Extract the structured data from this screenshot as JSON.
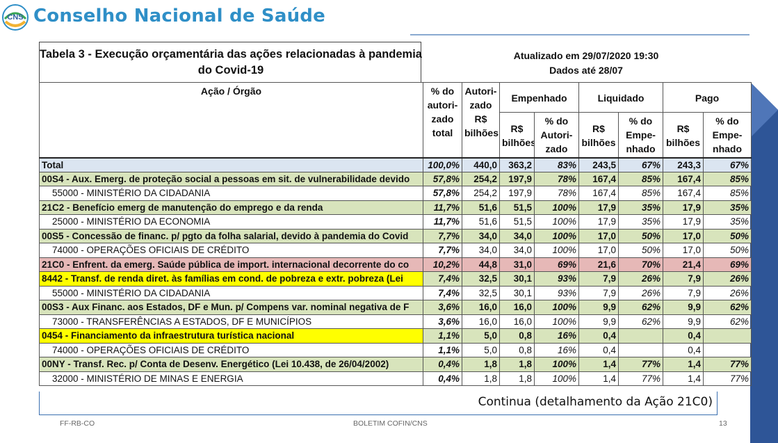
{
  "brand": {
    "name": "Conselho Nacional de Saúde",
    "logo_text": "CNS"
  },
  "table_title": "Tabela 3 - Execução orçamentária das ações relacionadas à pandemia do Covid-19",
  "updated": "Atualizado em 29/07/2020 19:30",
  "data_until": "Dados até 28/07",
  "headers": {
    "action": "Ação / Órgão",
    "pct_auth": "% do autori-zado total",
    "autorizado": "Autori-zado R$ bilhões",
    "empenhado": "Empenhado",
    "liquidado": "Liquidado",
    "pago": "Pago",
    "rs": "R$ bilhões",
    "pct_autori": "% do Autori-zado",
    "pct_empe": "% do Empe-nhado"
  },
  "rows": [
    {
      "label": "Total",
      "pct": "100,0%",
      "aut": "440,0",
      "emp": "363,2",
      "emp_pct": "83%",
      "liq": "243,5",
      "liq_pct": "67%",
      "pag": "243,3",
      "pag_pct": "67%",
      "style": "total"
    },
    {
      "label": "00S4 - Aux. Emerg. de proteção social a pessoas em sit. de vulnerabilidade devido",
      "pct": "57,8%",
      "aut": "254,2",
      "emp": "197,9",
      "emp_pct": "78%",
      "liq": "167,4",
      "liq_pct": "85%",
      "pag": "167,4",
      "pag_pct": "85%",
      "style": "green"
    },
    {
      "label": "55000 - MINISTÉRIO DA CIDADANIA",
      "pct": "57,8%",
      "aut": "254,2",
      "emp": "197,9",
      "emp_pct": "78%",
      "liq": "167,4",
      "liq_pct": "85%",
      "pag": "167,4",
      "pag_pct": "85%",
      "style": "sub"
    },
    {
      "label": "21C2 - Benefício emerg de manutenção do emprego e da renda",
      "pct": "11,7%",
      "aut": "51,6",
      "emp": "51,5",
      "emp_pct": "100%",
      "liq": "17,9",
      "liq_pct": "35%",
      "pag": "17,9",
      "pag_pct": "35%",
      "style": "green"
    },
    {
      "label": "25000 - MINISTÉRIO DA ECONOMIA",
      "pct": "11,7%",
      "aut": "51,6",
      "emp": "51,5",
      "emp_pct": "100%",
      "liq": "17,9",
      "liq_pct": "35%",
      "pag": "17,9",
      "pag_pct": "35%",
      "style": "sub"
    },
    {
      "label": "00S5 - Concessão de financ. p/ pgto da folha salarial, devido à pandemia do Covid",
      "pct": "7,7%",
      "aut": "34,0",
      "emp": "34,0",
      "emp_pct": "100%",
      "liq": "17,0",
      "liq_pct": "50%",
      "pag": "17,0",
      "pag_pct": "50%",
      "style": "green"
    },
    {
      "label": "74000 - OPERAÇÕES OFICIAIS DE CRÉDITO",
      "pct": "7,7%",
      "aut": "34,0",
      "emp": "34,0",
      "emp_pct": "100%",
      "liq": "17,0",
      "liq_pct": "50%",
      "pag": "17,0",
      "pag_pct": "50%",
      "style": "sub"
    },
    {
      "label": "21C0 - Enfrent. da emerg. Saúde pública de import. internacional decorrente do co",
      "pct": "10,2%",
      "aut": "44,8",
      "emp": "31,0",
      "emp_pct": "69%",
      "liq": "21,6",
      "liq_pct": "70%",
      "pag": "21,4",
      "pag_pct": "69%",
      "style": "pink"
    },
    {
      "label": "8442 - Transf. de renda diret. às famílias em cond. de pobreza e extr. pobreza (Lei",
      "pct": "7,4%",
      "aut": "32,5",
      "emp": "30,1",
      "emp_pct": "93%",
      "liq": "7,9",
      "liq_pct": "26%",
      "pag": "7,9",
      "pag_pct": "26%",
      "style": "yellow"
    },
    {
      "label": "55000 - MINISTÉRIO DA CIDADANIA",
      "pct": "7,4%",
      "aut": "32,5",
      "emp": "30,1",
      "emp_pct": "93%",
      "liq": "7,9",
      "liq_pct": "26%",
      "pag": "7,9",
      "pag_pct": "26%",
      "style": "sub"
    },
    {
      "label": "00S3 - Aux Financ. aos Estados, DF e Mun. p/ Compens var. nominal negativa de F",
      "pct": "3,6%",
      "aut": "16,0",
      "emp": "16,0",
      "emp_pct": "100%",
      "liq": "9,9",
      "liq_pct": "62%",
      "pag": "9,9",
      "pag_pct": "62%",
      "style": "green"
    },
    {
      "label": "73000 - TRANSFERÊNCIAS A ESTADOS, DF E MUNICÍPIOS",
      "pct": "3,6%",
      "aut": "16,0",
      "emp": "16,0",
      "emp_pct": "100%",
      "liq": "9,9",
      "liq_pct": "62%",
      "pag": "9,9",
      "pag_pct": "62%",
      "style": "sub"
    },
    {
      "label": "0454 - Financiamento da infraestrutura turística nacional",
      "pct": "1,1%",
      "aut": "5,0",
      "emp": "0,8",
      "emp_pct": "16%",
      "liq": "0,4",
      "liq_pct": "",
      "pag": "0,4",
      "pag_pct": "",
      "style": "yellow"
    },
    {
      "label": "74000 - OPERAÇÕES OFICIAIS DE CRÉDITO",
      "pct": "1,1%",
      "aut": "5,0",
      "emp": "0,8",
      "emp_pct": "16%",
      "liq": "0,4",
      "liq_pct": "",
      "pag": "0,4",
      "pag_pct": "",
      "style": "sub"
    },
    {
      "label": "00NY - Transf. Rec. p/ Conta de Desenv. Energético (Lei 10.438, de 26/04/2002)",
      "pct": "0,4%",
      "aut": "1,8",
      "emp": "1,8",
      "emp_pct": "100%",
      "liq": "1,4",
      "liq_pct": "77%",
      "pag": "1,4",
      "pag_pct": "77%",
      "style": "green"
    },
    {
      "label": "32000 - MINISTÉRIO DE MINAS E ENERGIA",
      "pct": "0,4%",
      "aut": "1,8",
      "emp": "1,8",
      "emp_pct": "100%",
      "liq": "1,4",
      "liq_pct": "77%",
      "pag": "1,4",
      "pag_pct": "77%",
      "style": "sub"
    }
  ],
  "continua": "Continua (detalhamento da Ação 21C0)",
  "footer": {
    "left": "FF-RB-CO",
    "center": "BOLETIM COFIN/CNS",
    "page": "13"
  },
  "colors": {
    "brand": "#2f8fc7",
    "total": "#dbe5f1",
    "green": "#d8e4bc",
    "pink": "#e6b8b7",
    "yellow": "#ffff00",
    "deco": "#2e5597"
  }
}
